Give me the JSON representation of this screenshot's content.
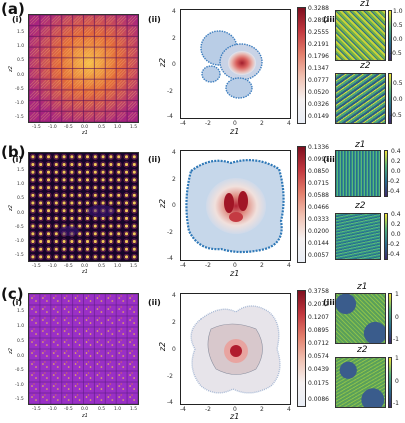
{
  "figure": {
    "rows": [
      {
        "letter": "(a)",
        "sub_i": "(i)",
        "sub_ii": "(ii)",
        "sub_iii": "(iii)",
        "grid_x_ticks": [
          "-1.5",
          "-1.0",
          "-0.5",
          "0.0",
          "0.5",
          "1.0",
          "1.5"
        ],
        "grid_y_ticks": [
          "1.5",
          "1.0",
          "0.5",
          "0.0",
          "-0.5",
          "-1.0",
          "-1.5"
        ],
        "grid_xlabel": "z1",
        "grid_ylabel": "z2",
        "density_x_ticks": [
          "-4",
          "-2",
          "0",
          "2",
          "4"
        ],
        "density_y_ticks": [
          "4",
          "2",
          "0",
          "-2",
          "-4"
        ],
        "density_xlabel": "z1",
        "density_ylabel": "z2",
        "cbar_values": [
          "0.3288",
          "0.2892",
          "0.2555",
          "0.2191",
          "0.1796",
          "0.1347",
          "0.0777",
          "0.0520",
          "0.0326",
          "0.0149"
        ],
        "map_top_title": "z1",
        "map_bottom_title": "z2",
        "map_top_ticks": [
          "1.0",
          "0.5",
          "0.0",
          "-0.5"
        ],
        "map_bottom_ticks": [
          "0.5",
          "0.0",
          "-0.5"
        ],
        "colors": {
          "grid_bg": "#c8318a",
          "grid_hi": "#f7a53a"
        }
      },
      {
        "letter": "(b)",
        "sub_i": "(i)",
        "sub_ii": "(ii)",
        "sub_iii": "(iii)",
        "grid_x_ticks": [
          "-1.5",
          "-1.0",
          "-0.5",
          "0.0",
          "0.5",
          "1.0",
          "1.5"
        ],
        "grid_y_ticks": [
          "1.5",
          "1.0",
          "0.5",
          "0.0",
          "-0.5",
          "-1.0",
          "-1.5"
        ],
        "grid_xlabel": "z1",
        "grid_ylabel": "z2",
        "density_x_ticks": [
          "-4",
          "-2",
          "0",
          "2",
          "4"
        ],
        "density_y_ticks": [
          "4",
          "2",
          "0",
          "-2",
          "-4"
        ],
        "density_xlabel": "z1",
        "density_ylabel": "z2",
        "cbar_values": [
          "0.1336",
          "0.0991",
          "0.0850",
          "0.0715",
          "0.0588",
          "0.0466",
          "0.0333",
          "0.0200",
          "0.0144",
          "0.0057"
        ],
        "map_top_title": "z1",
        "map_bottom_title": "z2",
        "map_top_ticks": [
          "0.4",
          "0.2",
          "0.0",
          "-0.2",
          "-0.4"
        ],
        "map_bottom_ticks": [
          "0.4",
          "0.2",
          "0.0",
          "-0.2",
          "-0.4"
        ],
        "colors": {
          "grid_bg": "#1a0530",
          "grid_hi": "#f2c94c"
        }
      },
      {
        "letter": "(c)",
        "sub_i": "(i)",
        "sub_ii": "(ii)",
        "sub_iii": "(iii)",
        "grid_x_ticks": [
          "-1.5",
          "-1.0",
          "-0.5",
          "0.0",
          "0.5",
          "1.0",
          "1.5"
        ],
        "grid_y_ticks": [
          "1.5",
          "1.0",
          "0.5",
          "0.0",
          "-0.5",
          "-1.0",
          "-1.5"
        ],
        "grid_xlabel": "z1",
        "grid_ylabel": "z2",
        "density_x_ticks": [
          "-4",
          "-2",
          "0",
          "2",
          "4"
        ],
        "density_y_ticks": [
          "4",
          "2",
          "0",
          "-2",
          "-4"
        ],
        "density_xlabel": "z1",
        "density_ylabel": "z2",
        "cbar_values": [
          "0.3758",
          "0.2072",
          "0.1207",
          "0.0895",
          "0.0712",
          "0.0574",
          "0.0439",
          "0.0175",
          "0.0086"
        ],
        "map_top_title": "z1",
        "map_bottom_title": "z2",
        "map_top_ticks": [
          "1",
          "0",
          "-1"
        ],
        "map_bottom_ticks": [
          "1",
          "0",
          "-1"
        ],
        "colors": {
          "grid_bg": "#9b2fc7",
          "grid_hi": "#e8b33e"
        }
      }
    ]
  }
}
